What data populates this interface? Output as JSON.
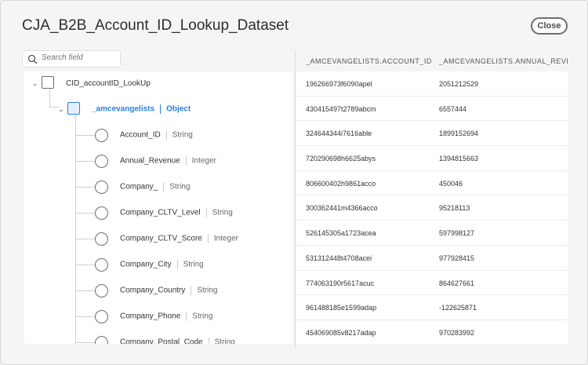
{
  "dialog": {
    "title": "CJA_B2B_Account_ID_Lookup_Dataset",
    "close_label": "Close"
  },
  "search": {
    "placeholder": "Search field"
  },
  "tree": {
    "root": {
      "label": "CID_accountID_LookUp"
    },
    "object": {
      "label": "_amcevangelists",
      "type": "Object"
    },
    "fields": [
      {
        "label": "Account_ID",
        "type": "String"
      },
      {
        "label": "Annual_Revenue",
        "type": "Integer"
      },
      {
        "label": "Company_",
        "type": "String"
      },
      {
        "label": "Company_CLTV_Level",
        "type": "String"
      },
      {
        "label": "Company_CLTV_Score",
        "type": "Integer"
      },
      {
        "label": "Company_City",
        "type": "String"
      },
      {
        "label": "Company_Country",
        "type": "String"
      },
      {
        "label": "Company_Phone",
        "type": "String"
      },
      {
        "label": "Company_Postal_Code",
        "type": "String"
      }
    ]
  },
  "table": {
    "columns": [
      "_AMCEVANGELISTS.ACCOUNT_ID",
      "_AMCEVANGELISTS.ANNUAL_REVENUE"
    ],
    "rows": [
      [
        "196266973f6090apel",
        "2051212529"
      ],
      [
        "430415497t2789abcm",
        "6557444"
      ],
      [
        "324644344i7616able",
        "1899152694"
      ],
      [
        "720290698h6625abys",
        "1394815663"
      ],
      [
        "806600402h9861acco",
        "450046"
      ],
      [
        "300362441m4366acco",
        "95218113"
      ],
      [
        "526145305a1723acea",
        "597998127"
      ],
      [
        "531312448t4708acei",
        "977928415"
      ],
      [
        "774063190r5617acuc",
        "864627661"
      ],
      [
        "961488185e1599adap",
        "-122625871"
      ],
      [
        "454069085v8217adap",
        "970283992"
      ]
    ]
  }
}
